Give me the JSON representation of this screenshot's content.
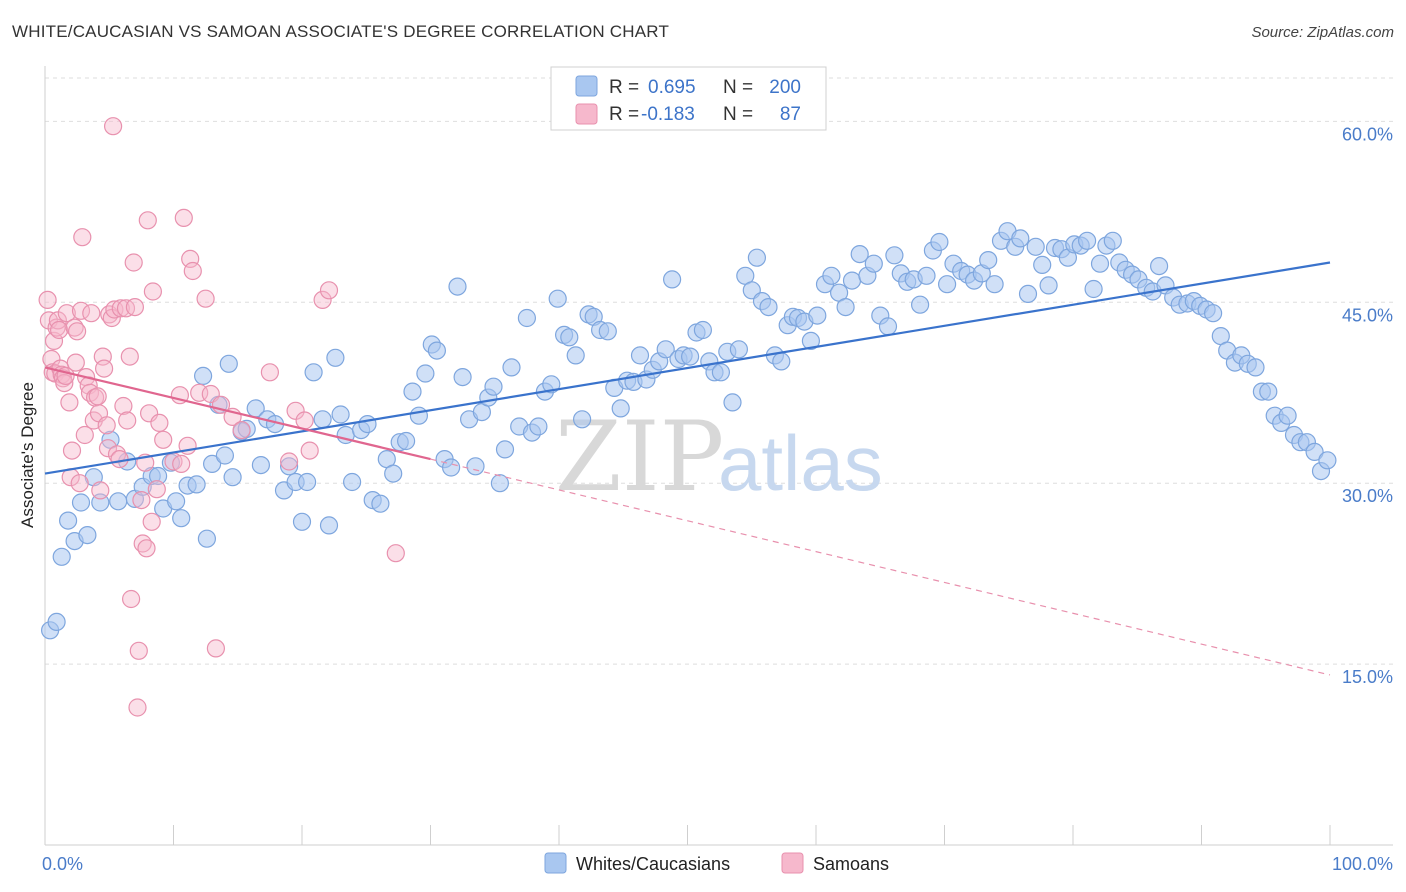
{
  "title": "WHITE/CAUCASIAN VS SAMOAN ASSOCIATE'S DEGREE CORRELATION CHART",
  "source": "Source: ZipAtlas.com",
  "watermark": {
    "zip": "ZIP",
    "atlas": "atlas"
  },
  "legend": {
    "rows": [
      {
        "r_label": "R =",
        "r_value": "0.695",
        "n_label": "N =",
        "n_value": "200",
        "color": "#a9c7f0"
      },
      {
        "r_label": "R =",
        "r_value": "-0.183",
        "n_label": "N =",
        "n_value": "87",
        "color": "#f6b8cc"
      }
    ]
  },
  "bottom_legend": [
    {
      "label": "Whites/Caucasians",
      "color": "#a9c7f0"
    },
    {
      "label": "Samoans",
      "color": "#f6b8cc"
    }
  ],
  "chart_data": {
    "type": "scatter",
    "ylabel": "Associate's Degree",
    "xlim": [
      0,
      100
    ],
    "ylim": [
      0,
      63.6
    ],
    "x_tick_labels": [
      "0.0%",
      "100.0%"
    ],
    "y_ticks": [
      15,
      30,
      45,
      60
    ],
    "y_tick_labels": [
      "15.0%",
      "30.0%",
      "45.0%",
      "60.0%"
    ],
    "grid": true,
    "series": [
      {
        "name": "Whites/Caucasians",
        "color": "#4a7cc9",
        "fill": "#a9c7f0",
        "trend": {
          "x0": 0,
          "y0": 30.8,
          "x1": 100,
          "y1": 48.3
        },
        "points": [
          [
            0.4,
            17.8
          ],
          [
            0.9,
            18.5
          ],
          [
            1.3,
            23.9
          ],
          [
            1.8,
            26.9
          ],
          [
            2.3,
            25.2
          ],
          [
            2.8,
            28.4
          ],
          [
            3.3,
            25.7
          ],
          [
            3.8,
            30.5
          ],
          [
            4.3,
            28.4
          ],
          [
            5.1,
            33.6
          ],
          [
            5.7,
            28.5
          ],
          [
            6.4,
            31.8
          ],
          [
            7.0,
            28.7
          ],
          [
            7.6,
            29.7
          ],
          [
            8.3,
            30.6
          ],
          [
            8.8,
            30.6
          ],
          [
            9.2,
            27.9
          ],
          [
            9.8,
            31.7
          ],
          [
            10.2,
            28.5
          ],
          [
            10.6,
            27.1
          ],
          [
            11.1,
            29.8
          ],
          [
            11.8,
            29.9
          ],
          [
            12.3,
            38.9
          ],
          [
            12.6,
            25.4
          ],
          [
            13.0,
            31.6
          ],
          [
            13.5,
            36.5
          ],
          [
            14.0,
            32.3
          ],
          [
            14.3,
            39.9
          ],
          [
            14.6,
            30.5
          ],
          [
            15.3,
            34.3
          ],
          [
            15.7,
            34.5
          ],
          [
            16.4,
            36.2
          ],
          [
            16.8,
            31.5
          ],
          [
            17.3,
            35.3
          ],
          [
            17.9,
            34.9
          ],
          [
            18.6,
            29.4
          ],
          [
            19.0,
            31.4
          ],
          [
            19.5,
            30.1
          ],
          [
            20.0,
            26.8
          ],
          [
            20.4,
            30.1
          ],
          [
            20.9,
            39.2
          ],
          [
            21.6,
            35.3
          ],
          [
            22.1,
            26.5
          ],
          [
            22.6,
            40.4
          ],
          [
            23.0,
            35.7
          ],
          [
            23.4,
            34.0
          ],
          [
            23.9,
            30.1
          ],
          [
            24.6,
            34.4
          ],
          [
            25.1,
            34.9
          ],
          [
            25.5,
            28.6
          ],
          [
            26.1,
            28.3
          ],
          [
            26.6,
            32.0
          ],
          [
            27.1,
            30.8
          ],
          [
            27.6,
            33.4
          ],
          [
            28.1,
            33.5
          ],
          [
            28.6,
            37.6
          ],
          [
            29.1,
            35.6
          ],
          [
            29.6,
            39.1
          ],
          [
            30.1,
            41.5
          ],
          [
            30.5,
            41.0
          ],
          [
            31.1,
            32.0
          ],
          [
            31.6,
            31.3
          ],
          [
            32.1,
            46.3
          ],
          [
            32.5,
            38.8
          ],
          [
            33.0,
            35.3
          ],
          [
            33.5,
            31.4
          ],
          [
            34.0,
            35.9
          ],
          [
            34.5,
            37.1
          ],
          [
            34.9,
            38.0
          ],
          [
            35.4,
            30.0
          ],
          [
            35.8,
            32.8
          ],
          [
            36.3,
            39.6
          ],
          [
            36.9,
            34.7
          ],
          [
            37.5,
            43.7
          ],
          [
            37.9,
            34.2
          ],
          [
            38.4,
            34.7
          ],
          [
            38.9,
            37.6
          ],
          [
            39.4,
            38.2
          ],
          [
            39.9,
            45.3
          ],
          [
            40.4,
            42.3
          ],
          [
            40.8,
            42.1
          ],
          [
            41.3,
            40.6
          ],
          [
            41.8,
            35.3
          ],
          [
            42.3,
            44.0
          ],
          [
            42.7,
            43.8
          ],
          [
            43.2,
            42.7
          ],
          [
            43.8,
            42.6
          ],
          [
            44.3,
            37.9
          ],
          [
            44.8,
            36.2
          ],
          [
            45.3,
            38.5
          ],
          [
            45.8,
            38.4
          ],
          [
            46.3,
            40.6
          ],
          [
            46.8,
            38.6
          ],
          [
            47.3,
            39.4
          ],
          [
            47.8,
            40.1
          ],
          [
            48.3,
            41.1
          ],
          [
            48.8,
            46.9
          ],
          [
            49.3,
            40.3
          ],
          [
            49.7,
            40.6
          ],
          [
            50.2,
            40.5
          ],
          [
            50.7,
            42.5
          ],
          [
            51.2,
            42.7
          ],
          [
            51.7,
            40.1
          ],
          [
            52.1,
            39.2
          ],
          [
            52.6,
            39.2
          ],
          [
            53.1,
            40.9
          ],
          [
            53.5,
            36.7
          ],
          [
            54.0,
            41.1
          ],
          [
            54.5,
            47.2
          ],
          [
            55.0,
            46.0
          ],
          [
            55.4,
            48.7
          ],
          [
            55.8,
            45.1
          ],
          [
            56.3,
            44.6
          ],
          [
            56.8,
            40.6
          ],
          [
            57.3,
            40.1
          ],
          [
            57.8,
            43.1
          ],
          [
            58.2,
            43.8
          ],
          [
            58.6,
            43.7
          ],
          [
            59.1,
            43.4
          ],
          [
            59.6,
            41.8
          ],
          [
            60.1,
            43.9
          ],
          [
            60.7,
            46.5
          ],
          [
            61.2,
            47.2
          ],
          [
            61.8,
            45.8
          ],
          [
            62.3,
            44.6
          ],
          [
            62.8,
            46.8
          ],
          [
            63.4,
            49.0
          ],
          [
            64.0,
            47.2
          ],
          [
            64.5,
            48.2
          ],
          [
            65.0,
            43.9
          ],
          [
            65.6,
            43.0
          ],
          [
            66.1,
            48.9
          ],
          [
            66.6,
            47.4
          ],
          [
            67.1,
            46.7
          ],
          [
            67.6,
            46.9
          ],
          [
            68.1,
            44.8
          ],
          [
            68.6,
            47.2
          ],
          [
            69.1,
            49.3
          ],
          [
            69.6,
            50.0
          ],
          [
            70.2,
            46.5
          ],
          [
            70.7,
            48.2
          ],
          [
            71.3,
            47.6
          ],
          [
            71.8,
            47.3
          ],
          [
            72.3,
            46.8
          ],
          [
            72.9,
            47.4
          ],
          [
            73.4,
            48.5
          ],
          [
            73.9,
            46.5
          ],
          [
            74.4,
            50.1
          ],
          [
            74.9,
            50.9
          ],
          [
            75.5,
            49.6
          ],
          [
            75.9,
            50.3
          ],
          [
            76.5,
            45.7
          ],
          [
            77.1,
            49.6
          ],
          [
            77.6,
            48.1
          ],
          [
            78.1,
            46.4
          ],
          [
            78.6,
            49.5
          ],
          [
            79.1,
            49.4
          ],
          [
            79.6,
            48.7
          ],
          [
            80.1,
            49.8
          ],
          [
            80.6,
            49.7
          ],
          [
            81.1,
            50.1
          ],
          [
            81.6,
            46.1
          ],
          [
            82.1,
            48.2
          ],
          [
            82.6,
            49.7
          ],
          [
            83.1,
            50.1
          ],
          [
            83.6,
            48.3
          ],
          [
            84.1,
            47.7
          ],
          [
            84.6,
            47.3
          ],
          [
            85.1,
            46.9
          ],
          [
            85.7,
            46.2
          ],
          [
            86.2,
            45.9
          ],
          [
            86.7,
            48.0
          ],
          [
            87.2,
            46.4
          ],
          [
            87.8,
            45.4
          ],
          [
            88.3,
            44.8
          ],
          [
            88.9,
            44.9
          ],
          [
            89.4,
            45.1
          ],
          [
            89.9,
            44.7
          ],
          [
            90.4,
            44.4
          ],
          [
            90.9,
            44.1
          ],
          [
            91.5,
            42.2
          ],
          [
            92.0,
            41.0
          ],
          [
            92.6,
            40.0
          ],
          [
            93.1,
            40.6
          ],
          [
            93.6,
            39.9
          ],
          [
            94.2,
            39.6
          ],
          [
            94.7,
            37.6
          ],
          [
            95.2,
            37.6
          ],
          [
            95.7,
            35.6
          ],
          [
            96.2,
            35.0
          ],
          [
            96.7,
            35.6
          ],
          [
            97.2,
            34.0
          ],
          [
            97.7,
            33.4
          ],
          [
            98.2,
            33.4
          ],
          [
            98.8,
            32.6
          ],
          [
            99.3,
            31.0
          ],
          [
            99.8,
            31.9
          ]
        ]
      },
      {
        "name": "Samoans",
        "color": "#e0668f",
        "fill": "#f6b8cc",
        "trend": {
          "x0": 0,
          "y0": 39.6,
          "x1": 30,
          "y1": 32.0,
          "dash_x1": 100,
          "dash_y1": 14.1
        },
        "points": [
          [
            0.2,
            45.2
          ],
          [
            0.3,
            43.5
          ],
          [
            0.5,
            40.3
          ],
          [
            0.6,
            39.2
          ],
          [
            0.7,
            41.8
          ],
          [
            0.8,
            39.1
          ],
          [
            0.9,
            42.9
          ],
          [
            1.0,
            43.5
          ],
          [
            1.1,
            42.7
          ],
          [
            1.2,
            39.5
          ],
          [
            1.3,
            39.0
          ],
          [
            1.4,
            38.7
          ],
          [
            1.5,
            38.3
          ],
          [
            1.6,
            38.9
          ],
          [
            1.7,
            44.1
          ],
          [
            1.9,
            36.7
          ],
          [
            2.0,
            30.5
          ],
          [
            2.1,
            32.7
          ],
          [
            2.3,
            42.9
          ],
          [
            2.4,
            40.0
          ],
          [
            2.5,
            42.6
          ],
          [
            2.7,
            30.0
          ],
          [
            2.8,
            44.3
          ],
          [
            2.9,
            50.4
          ],
          [
            3.1,
            34.0
          ],
          [
            3.2,
            38.8
          ],
          [
            3.4,
            38.1
          ],
          [
            3.5,
            37.5
          ],
          [
            3.6,
            44.1
          ],
          [
            3.8,
            35.2
          ],
          [
            3.9,
            37.1
          ],
          [
            4.1,
            37.2
          ],
          [
            4.2,
            35.8
          ],
          [
            4.3,
            29.4
          ],
          [
            4.5,
            40.5
          ],
          [
            4.6,
            39.5
          ],
          [
            4.8,
            34.8
          ],
          [
            4.9,
            32.9
          ],
          [
            5.0,
            44.0
          ],
          [
            5.2,
            43.7
          ],
          [
            5.3,
            59.6
          ],
          [
            5.4,
            44.4
          ],
          [
            5.6,
            32.4
          ],
          [
            5.8,
            32.0
          ],
          [
            5.9,
            44.5
          ],
          [
            6.1,
            36.4
          ],
          [
            6.3,
            44.5
          ],
          [
            6.4,
            35.2
          ],
          [
            6.6,
            40.5
          ],
          [
            6.7,
            20.4
          ],
          [
            6.9,
            48.3
          ],
          [
            7.0,
            44.6
          ],
          [
            7.2,
            11.4
          ],
          [
            7.3,
            16.1
          ],
          [
            7.5,
            28.6
          ],
          [
            7.6,
            25.0
          ],
          [
            7.8,
            31.7
          ],
          [
            7.9,
            24.6
          ],
          [
            8.0,
            51.8
          ],
          [
            8.1,
            35.8
          ],
          [
            8.3,
            26.8
          ],
          [
            8.4,
            45.9
          ],
          [
            8.7,
            29.5
          ],
          [
            8.9,
            35.0
          ],
          [
            9.2,
            33.6
          ],
          [
            10.0,
            31.8
          ],
          [
            10.5,
            37.3
          ],
          [
            10.6,
            31.6
          ],
          [
            10.8,
            52.0
          ],
          [
            11.1,
            33.1
          ],
          [
            11.3,
            48.6
          ],
          [
            11.5,
            47.6
          ],
          [
            12.0,
            37.5
          ],
          [
            12.5,
            45.3
          ],
          [
            12.9,
            37.4
          ],
          [
            13.3,
            16.3
          ],
          [
            13.7,
            36.5
          ],
          [
            14.6,
            35.5
          ],
          [
            15.3,
            34.4
          ],
          [
            17.5,
            39.2
          ],
          [
            19.0,
            31.8
          ],
          [
            19.5,
            36.0
          ],
          [
            20.2,
            35.2
          ],
          [
            20.6,
            32.7
          ],
          [
            21.6,
            45.2
          ],
          [
            22.1,
            46.0
          ],
          [
            27.3,
            24.2
          ]
        ]
      }
    ]
  }
}
